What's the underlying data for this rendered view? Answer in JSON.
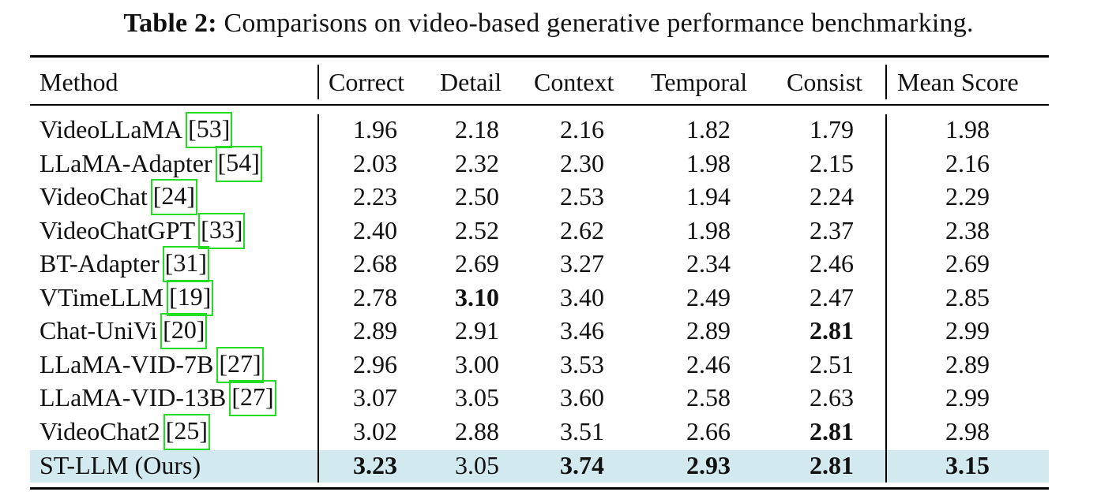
{
  "caption": {
    "label": "Table 2:",
    "text": " Comparisons on video-based generative performance benchmarking."
  },
  "headers": [
    "Method",
    "Correct",
    "Detail",
    "Context",
    "Temporal",
    "Consist",
    "Mean Score"
  ],
  "rows": [
    {
      "method": "VideoLLaMA",
      "ref": "53",
      "values": [
        "1.96",
        "2.18",
        "2.16",
        "1.82",
        "1.79",
        "1.98"
      ],
      "bold": []
    },
    {
      "method": "LLaMA-Adapter",
      "ref": "54",
      "values": [
        "2.03",
        "2.32",
        "2.30",
        "1.98",
        "2.15",
        "2.16"
      ],
      "bold": []
    },
    {
      "method": "VideoChat",
      "ref": "24",
      "values": [
        "2.23",
        "2.50",
        "2.53",
        "1.94",
        "2.24",
        "2.29"
      ],
      "bold": []
    },
    {
      "method": "VideoChatGPT",
      "ref": "33",
      "values": [
        "2.40",
        "2.52",
        "2.62",
        "1.98",
        "2.37",
        "2.38"
      ],
      "bold": []
    },
    {
      "method": "BT-Adapter",
      "ref": "31",
      "values": [
        "2.68",
        "2.69",
        "3.27",
        "2.34",
        "2.46",
        "2.69"
      ],
      "bold": []
    },
    {
      "method": "VTimeLLM",
      "ref": "19",
      "values": [
        "2.78",
        "3.10",
        "3.40",
        "2.49",
        "2.47",
        "2.85"
      ],
      "bold": [
        1
      ]
    },
    {
      "method": "Chat-UniVi",
      "ref": "20",
      "values": [
        "2.89",
        "2.91",
        "3.46",
        "2.89",
        "2.81",
        "2.99"
      ],
      "bold": [
        4
      ]
    },
    {
      "method": "LLaMA-VID-7B",
      "ref": "27",
      "values": [
        "2.96",
        "3.00",
        "3.53",
        "2.46",
        "2.51",
        "2.89"
      ],
      "bold": []
    },
    {
      "method": "LLaMA-VID-13B",
      "ref": "27",
      "values": [
        "3.07",
        "3.05",
        "3.60",
        "2.58",
        "2.63",
        "2.99"
      ],
      "bold": []
    },
    {
      "method": "VideoChat2",
      "ref": "25",
      "values": [
        "3.02",
        "2.88",
        "3.51",
        "2.66",
        "2.81",
        "2.98"
      ],
      "bold": [
        4
      ]
    },
    {
      "method": "ST-LLM (Ours)",
      "ref": "",
      "values": [
        "3.23",
        "3.05",
        "3.74",
        "2.93",
        "2.81",
        "3.15"
      ],
      "bold": [
        0,
        2,
        3,
        4,
        5
      ],
      "highlight": true
    }
  ],
  "colors": {
    "highlight_row": "#d2e9ef",
    "citation_box": "#22dd22"
  }
}
